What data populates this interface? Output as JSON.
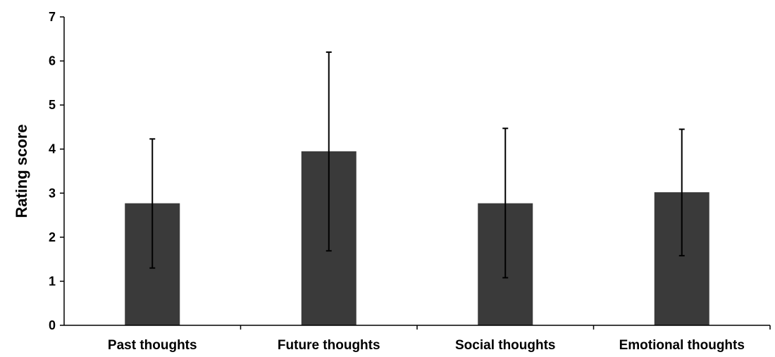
{
  "chart_data": {
    "type": "bar",
    "title": "",
    "xlabel": "",
    "ylabel": "Rating score",
    "ylim": [
      0,
      7
    ],
    "yticks": [
      0,
      1,
      2,
      3,
      4,
      5,
      6,
      7
    ],
    "grid": false,
    "legend": "none",
    "categories": [
      "Past thoughts",
      "Future thoughts",
      "Social thoughts",
      "Emotional thoughts"
    ],
    "series": [
      {
        "values": [
          2.77,
          3.95,
          2.77,
          3.02
        ],
        "error_low": [
          1.3,
          1.69,
          1.08,
          1.58
        ],
        "error_high": [
          4.23,
          6.2,
          4.47,
          4.45
        ]
      }
    ],
    "bar_color": "#3a3a3a",
    "axis_color": "#000000"
  }
}
